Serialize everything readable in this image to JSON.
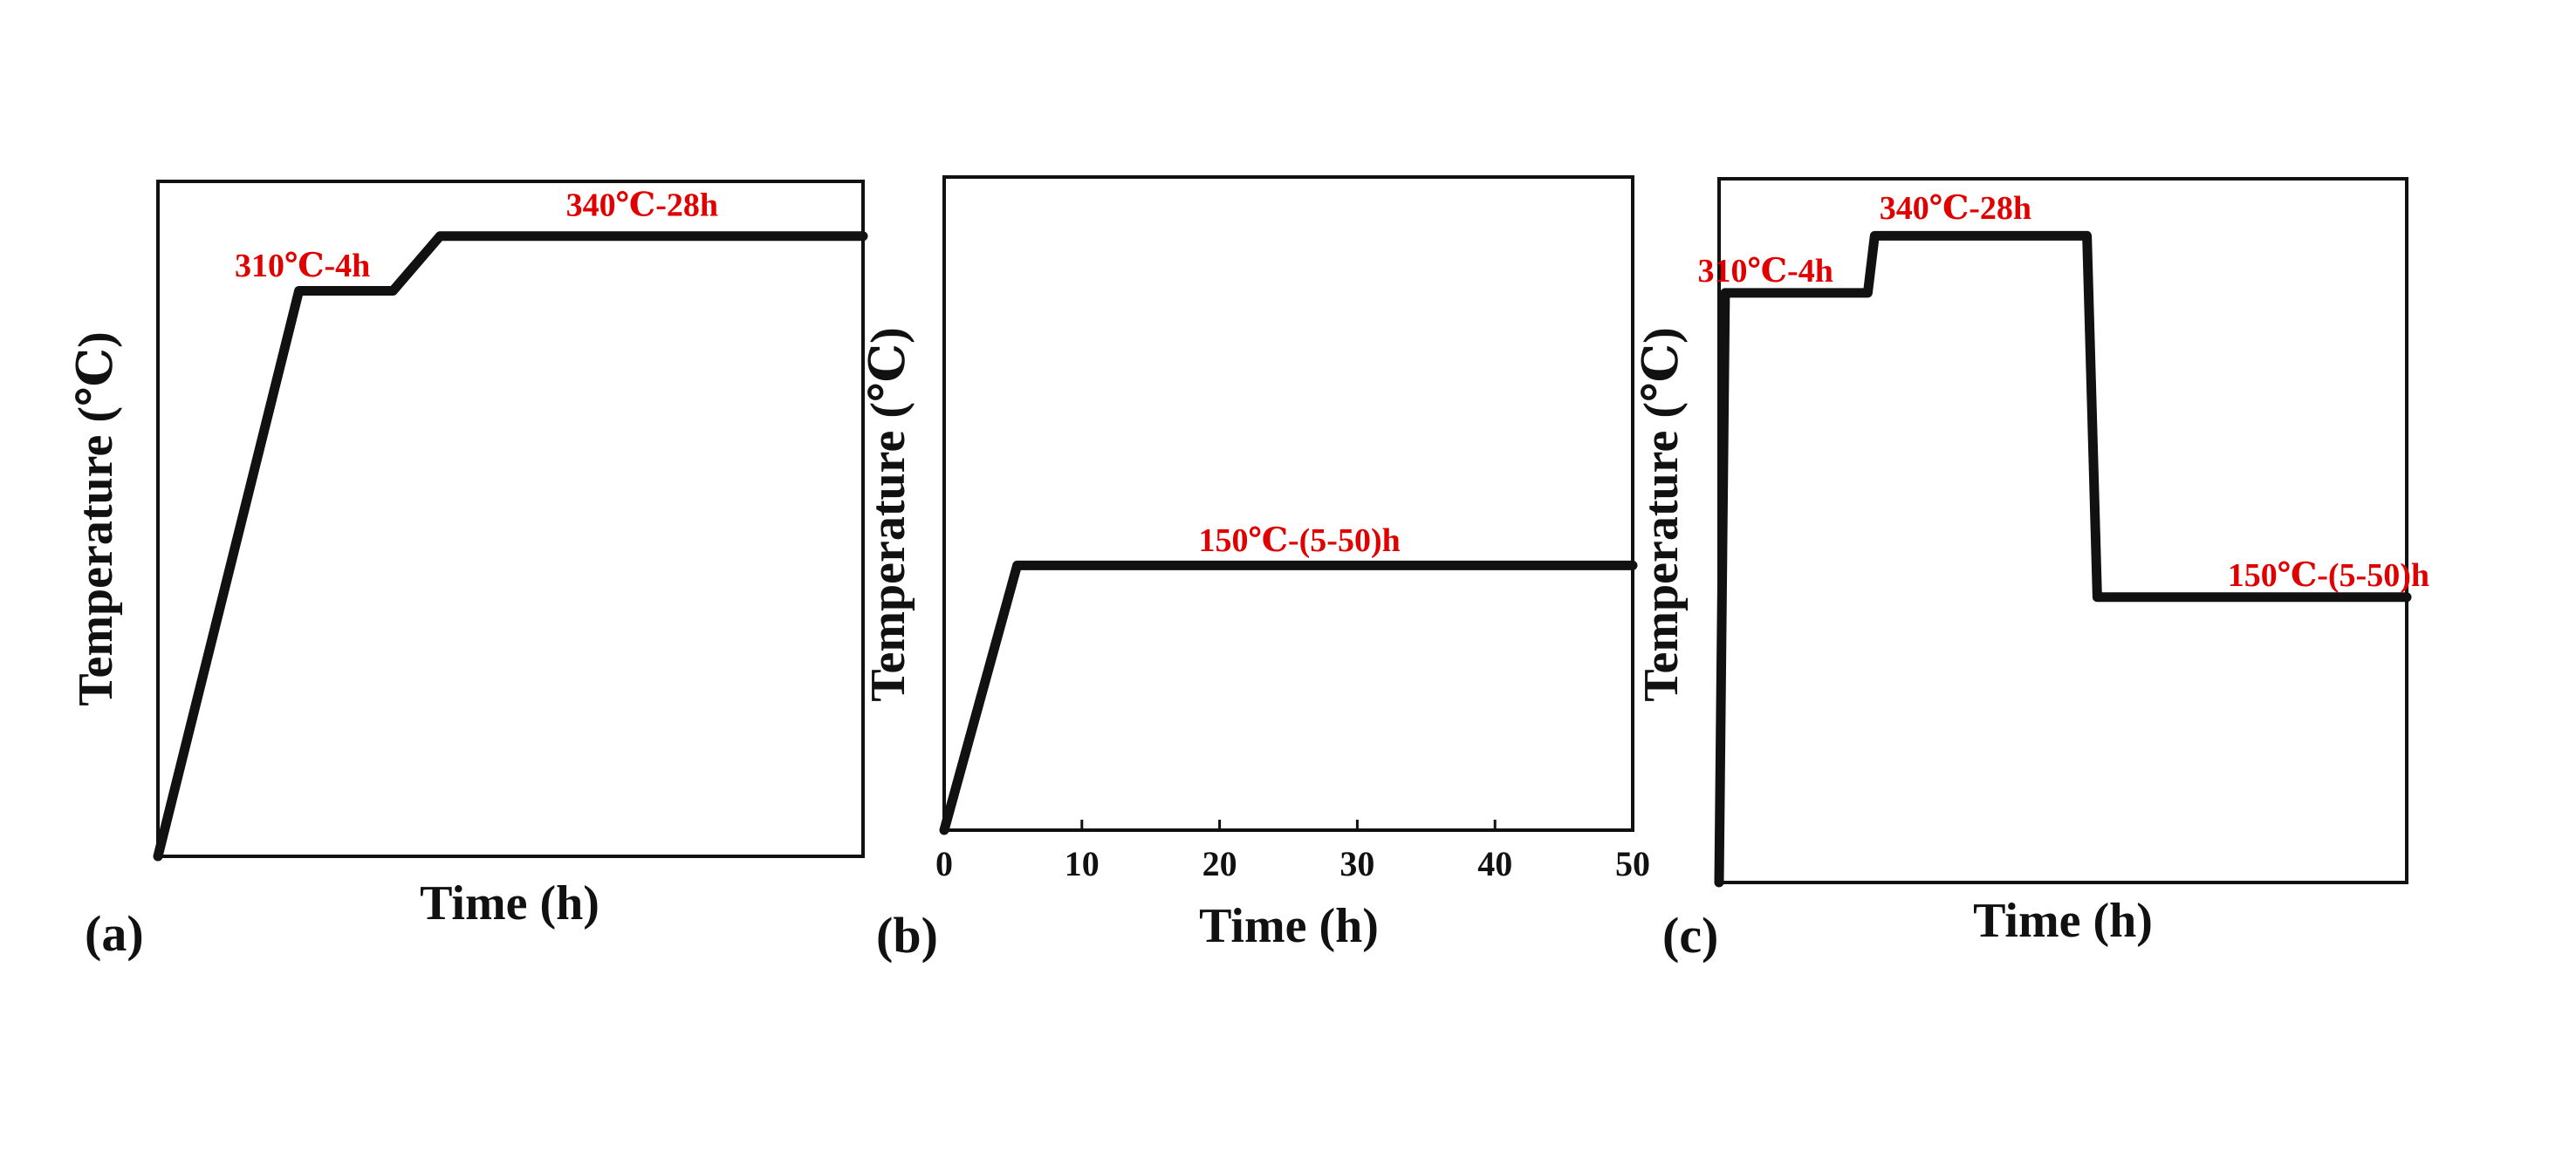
{
  "chart_data": [
    {
      "type": "line",
      "panel_label": "(a)",
      "xlabel": "Time (h)",
      "ylabel": "Temperature (℃)",
      "xticks": [],
      "xlim": [
        0,
        60
      ],
      "ylim": [
        0,
        370
      ],
      "x": [
        0,
        12,
        20,
        24,
        60
      ],
      "y": [
        0,
        310,
        310,
        340,
        340
      ],
      "annotations": [
        {
          "text": "310℃-4h",
          "x": 12.3,
          "y": 318
        },
        {
          "text": "340℃-28h",
          "x": 41.2,
          "y": 351
        }
      ],
      "line_color": "#111111",
      "annotation_color": "#e00000"
    },
    {
      "type": "line",
      "panel_label": "(b)",
      "xlabel": "Time (h)",
      "ylabel": "Temperature (℃)",
      "xticks": [
        "0",
        "10",
        "20",
        "30",
        "40",
        "50"
      ],
      "xlim": [
        0,
        50
      ],
      "ylim": [
        0,
        370
      ],
      "x": [
        0,
        5.3,
        50
      ],
      "y": [
        0,
        150,
        150
      ],
      "annotations": [
        {
          "text": "150℃-(5-50)h",
          "x": 25.8,
          "y": 158
        }
      ],
      "line_color": "#111111",
      "annotation_color": "#e00000"
    },
    {
      "type": "line",
      "panel_label": "(c)",
      "xlabel": "Time (h)",
      "ylabel": "Temperature (℃)",
      "xticks": [],
      "xlim": [
        0,
        80
      ],
      "ylim": [
        0,
        370
      ],
      "x": [
        0,
        0.7,
        17.3,
        18.1,
        42.8,
        44.0,
        80
      ],
      "y": [
        0,
        310,
        310,
        340,
        340,
        150,
        150
      ],
      "annotations": [
        {
          "text": "310℃-4h",
          "x": 5.4,
          "y": 316
        },
        {
          "text": "340℃-28h",
          "x": 27.5,
          "y": 349
        },
        {
          "text": "150℃-(5-50)h",
          "x": 70.9,
          "y": 156
        }
      ],
      "line_color": "#111111",
      "annotation_color": "#e00000"
    }
  ]
}
